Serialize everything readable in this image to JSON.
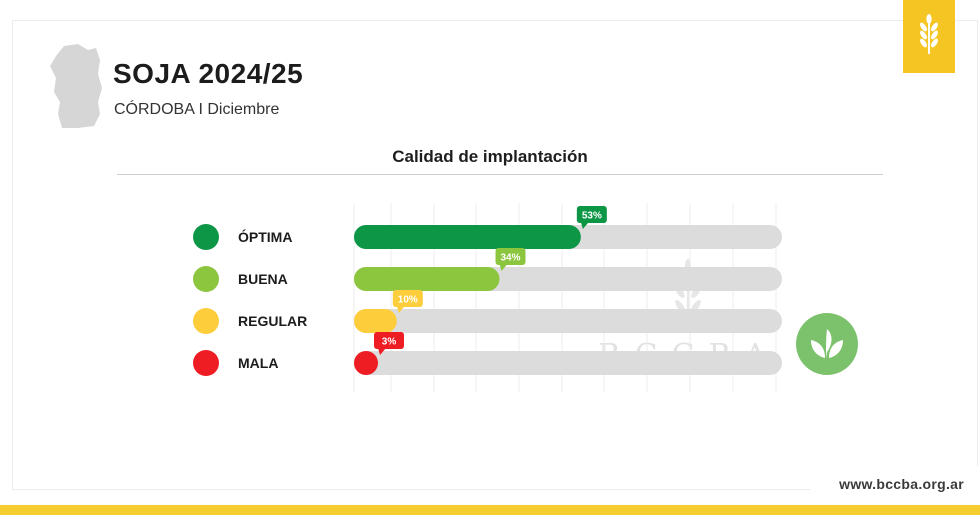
{
  "header": {
    "title": "SOJA 2024/25",
    "subtitle": "CÓRDOBA I Diciembre",
    "watermark": "BCCBA",
    "url": "www.bccba.org.ar"
  },
  "icons": {
    "province": "cordoba-map-icon",
    "corner": "wheat-icon",
    "logo": "sprout-icon"
  },
  "colors": {
    "accent": "#f5c623",
    "track": "#dcdcdc",
    "logo": "#7cc26c"
  },
  "chart_data": {
    "type": "bar",
    "orientation": "horizontal",
    "title": "Calidad de implantación",
    "categories": [
      "ÓPTIMA",
      "BUENA",
      "REGULAR",
      "MALA"
    ],
    "values": [
      53,
      34,
      10,
      3
    ],
    "labels": [
      "53%",
      "34%",
      "10%",
      "3%"
    ],
    "colors": [
      "#0c9645",
      "#8cc63f",
      "#fdcd3c",
      "#ee1c23"
    ],
    "xlim": [
      0,
      100
    ],
    "grid": true,
    "legend": "left"
  }
}
